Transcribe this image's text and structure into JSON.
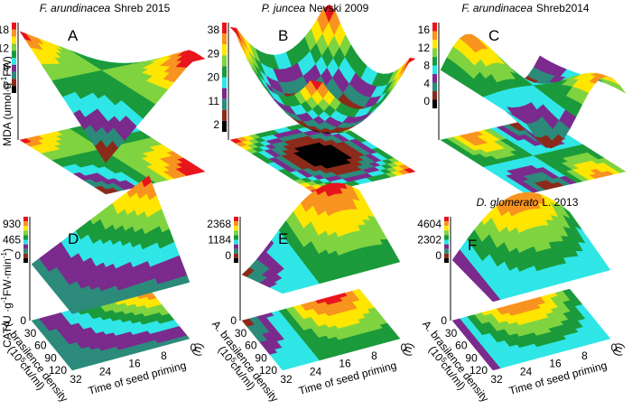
{
  "panels": [
    {
      "letter": "A",
      "title": {
        "species": "F. arundinacea",
        "rest": "Shreb 2015"
      },
      "ticks": [
        "18",
        "12",
        "6",
        "0"
      ]
    },
    {
      "letter": "B",
      "title": {
        "species": "P. juncea",
        "rest": "Nevski 2009"
      },
      "ticks": [
        "38",
        "29",
        "20",
        "11",
        "2"
      ]
    },
    {
      "letter": "C",
      "title": {
        "species": "F. arundinacea",
        "rest": "Shreb2014"
      },
      "ticks": [
        "16",
        "12",
        "8",
        "4",
        "0"
      ]
    },
    {
      "letter": "D",
      "ticks": [
        "930",
        "465",
        "0"
      ]
    },
    {
      "letter": "E",
      "ticks": [
        "2368",
        "1184",
        "0"
      ]
    },
    {
      "letter": "F",
      "title": {
        "species": "D. glomerato",
        "rest": "L. 2013"
      },
      "ticks": [
        "4604",
        "2302",
        "0"
      ]
    }
  ],
  "mda_label": [
    "MDA (umol·g",
    "-1",
    "FW)"
  ],
  "cat_label": [
    "CAT(U ·g",
    "-1",
    "FW·min",
    "-1",
    ")"
  ],
  "density_ticks": [
    "0",
    "30",
    "60",
    "90",
    "120"
  ],
  "density_label": [
    "A. brasilence density",
    "(10",
    "5",
    "cfu/ml)"
  ],
  "time_ticks": [
    "32",
    "24",
    "16",
    "8",
    "0"
  ],
  "time_label": "Time of seed priming",
  "time_unit": "(h)"
}
